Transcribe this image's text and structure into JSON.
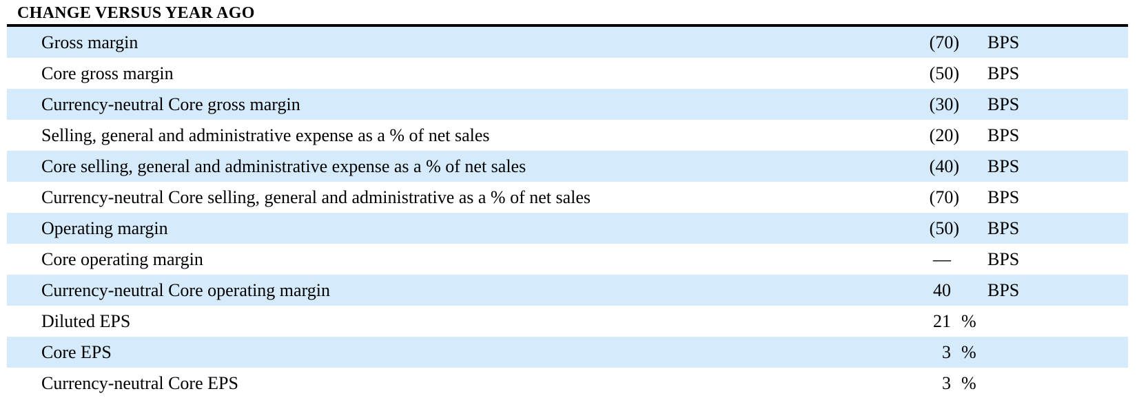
{
  "title": "CHANGE VERSUS YEAR AGO",
  "colors": {
    "row_highlight": "#d5eafa",
    "rule": "#000000",
    "text": "#000000",
    "background": "#ffffff"
  },
  "table": {
    "rows": [
      {
        "label": "Gross margin",
        "value": "(70)",
        "unit": "BPS"
      },
      {
        "label": "Core gross margin",
        "value": "(50)",
        "unit": "BPS"
      },
      {
        "label": "Currency-neutral Core gross margin",
        "value": "(30)",
        "unit": "BPS"
      },
      {
        "label": "Selling, general and administrative expense as a % of net sales",
        "value": "(20)",
        "unit": "BPS"
      },
      {
        "label": "Core selling, general and administrative expense as a % of net sales",
        "value": "(40)",
        "unit": "BPS"
      },
      {
        "label": "Currency-neutral Core selling, general and administrative as a % of net sales",
        "value": "(70)",
        "unit": "BPS"
      },
      {
        "label": "Operating margin",
        "value": "(50)",
        "unit": "BPS"
      },
      {
        "label": "Core operating margin",
        "value": "—",
        "unit": "BPS"
      },
      {
        "label": "Currency-neutral Core operating margin",
        "value": "40",
        "unit": "BPS"
      },
      {
        "label": "Diluted EPS",
        "value": "21",
        "unit": "%"
      },
      {
        "label": "Core EPS",
        "value": "3",
        "unit": "%"
      },
      {
        "label": "Currency-neutral Core EPS",
        "value": "3",
        "unit": "%"
      }
    ]
  }
}
